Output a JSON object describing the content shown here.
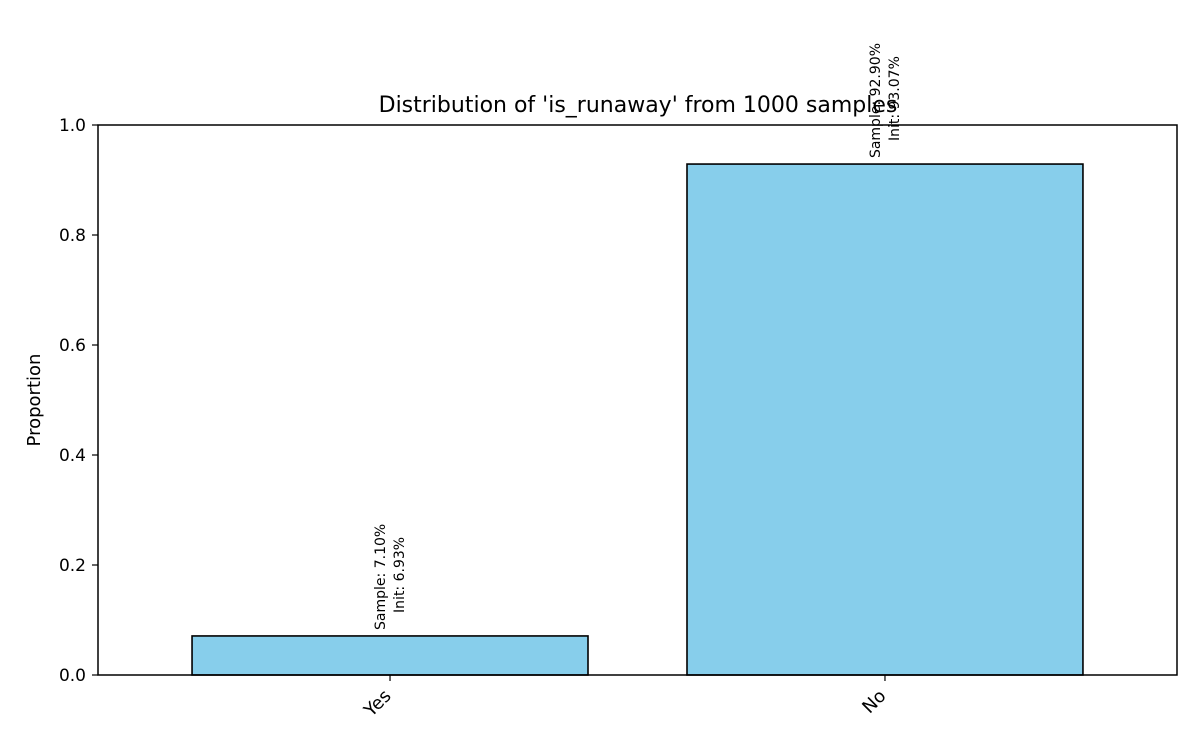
{
  "chart_data": {
    "type": "bar",
    "title": "Distribution of 'is_runaway' from 1000 samples",
    "xlabel": "",
    "ylabel": "Proportion",
    "ylim": [
      0,
      1.0
    ],
    "yticks": [
      "0.0",
      "0.2",
      "0.4",
      "0.6",
      "0.8",
      "1.0"
    ],
    "ytick_values": [
      0.0,
      0.2,
      0.4,
      0.6,
      0.8,
      1.0
    ],
    "categories": [
      "Yes",
      "No"
    ],
    "values": [
      0.071,
      0.929
    ],
    "bar_labels": [
      [
        "Sample: 7.10%",
        "Init: 6.93%"
      ],
      [
        "Sample: 92.90%",
        "Init: 93.07%"
      ]
    ],
    "bar_color": "#87ceeb",
    "bar_edge_color": "#000000",
    "grid": false
  }
}
